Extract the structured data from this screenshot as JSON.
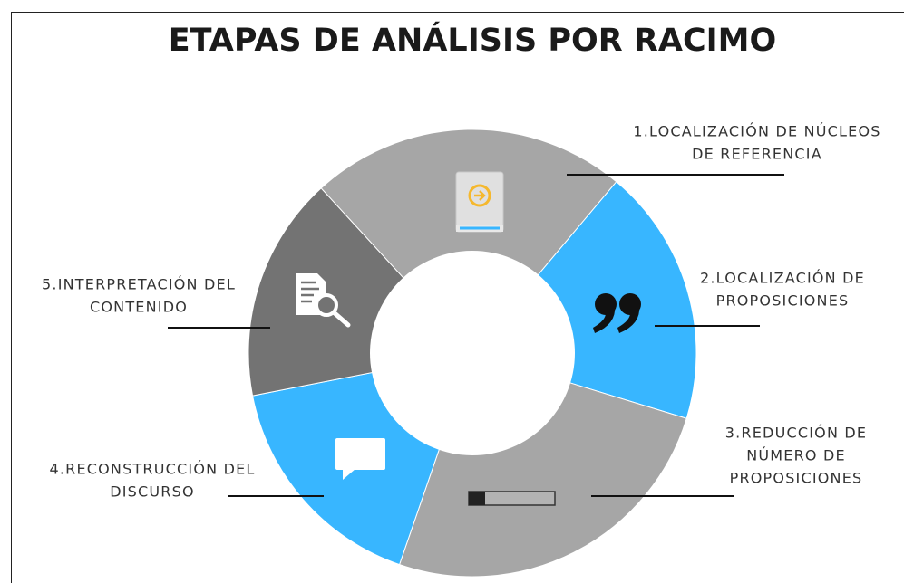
{
  "title": "ETAPAS DE ANÁLISIS POR RACIMO",
  "stages": [
    {
      "lines": [
        "1.LOCALIZACIÓN DE NÚCLEOS",
        "DE REFERENCIA"
      ]
    },
    {
      "lines": [
        "2.LOCALIZACIÓN DE",
        "PROPOSICIONES"
      ]
    },
    {
      "lines": [
        "3.REDUCCIÓN DE",
        "NÚMERO DE",
        "PROPOSICIONES"
      ]
    },
    {
      "lines": [
        "4.RECONSTRUCCIÓN DEL",
        "DISCURSO"
      ]
    },
    {
      "lines": [
        "5.INTERPRETACIÓN DEL",
        "CONTENIDO"
      ]
    }
  ]
}
